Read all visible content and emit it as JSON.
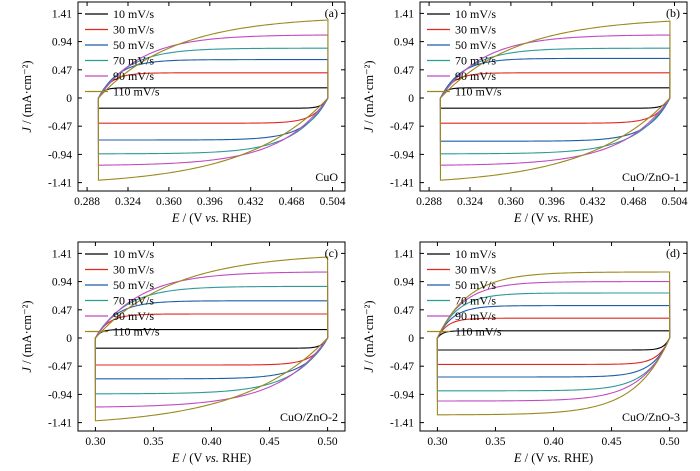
{
  "figure": {
    "legend_entries": [
      "10 mV/s",
      "30 mV/s",
      "50 mV/s",
      "70 mV/s",
      "90 mV/s",
      "110 mV/s"
    ],
    "series_colors": [
      "#000000",
      "#e0271f",
      "#1e5ea8",
      "#2f9a9a",
      "#c24ac2",
      "#9a8a1e"
    ]
  },
  "chart_data": [
    {
      "type": "line",
      "panel_label": "(a)",
      "sample_label": "CuO",
      "xlabel_italic": "E",
      "xlabel_rest": " / (V ",
      "xlabel_vs": "vs.",
      "xlabel_end": " RHE)",
      "ylabel_italic": "J",
      "ylabel_rest": " / (mA·cm⁻²)",
      "xlim": [
        0.28,
        0.515
      ],
      "ylim": [
        -1.55,
        1.6
      ],
      "xticks": [
        "0.288",
        "0.324",
        "0.360",
        "0.396",
        "0.432",
        "0.468",
        "0.504"
      ],
      "yticks": [
        "1.41",
        "0.94",
        "0.47",
        "0",
        "-0.47",
        "-0.94",
        "-1.41"
      ],
      "grid": false,
      "legend_position": "top-left",
      "x_range": [
        0.298,
        0.5
      ],
      "series": [
        {
          "name": "10 mV/s",
          "anodic_plateau": 0.17,
          "cathodic_plateau": -0.17,
          "sharpness": 0.02
        },
        {
          "name": "30 mV/s",
          "anodic_plateau": 0.42,
          "cathodic_plateau": -0.42,
          "sharpness": 0.05
        },
        {
          "name": "50 mV/s",
          "anodic_plateau": 0.64,
          "cathodic_plateau": -0.7,
          "sharpness": 0.08
        },
        {
          "name": "70 mV/s",
          "anodic_plateau": 0.83,
          "cathodic_plateau": -0.93,
          "sharpness": 0.12
        },
        {
          "name": "90 mV/s",
          "anodic_plateau": 1.05,
          "cathodic_plateau": -1.12,
          "sharpness": 0.17
        },
        {
          "name": "110 mV/s",
          "anodic_plateau": 1.3,
          "cathodic_plateau": -1.37,
          "sharpness": 0.3
        }
      ]
    },
    {
      "type": "line",
      "panel_label": "(b)",
      "sample_label": "CuO/ZnO-1",
      "xlabel_italic": "E",
      "xlabel_rest": " / (V ",
      "xlabel_vs": "vs.",
      "xlabel_end": " RHE)",
      "ylabel_italic": "J",
      "ylabel_rest": " / (mA·cm⁻²)",
      "xlim": [
        0.28,
        0.515
      ],
      "ylim": [
        -1.55,
        1.6
      ],
      "xticks": [
        "0.288",
        "0.324",
        "0.360",
        "0.396",
        "0.432",
        "0.468",
        "0.504"
      ],
      "yticks": [
        "1.41",
        "0.94",
        "0.47",
        "0",
        "-0.47",
        "-0.94",
        "-1.41"
      ],
      "grid": false,
      "legend_position": "top-left",
      "x_range": [
        0.298,
        0.5
      ],
      "series": [
        {
          "name": "10 mV/s",
          "anodic_plateau": 0.17,
          "cathodic_plateau": -0.17,
          "sharpness": 0.02
        },
        {
          "name": "30 mV/s",
          "anodic_plateau": 0.42,
          "cathodic_plateau": -0.42,
          "sharpness": 0.05
        },
        {
          "name": "50 mV/s",
          "anodic_plateau": 0.66,
          "cathodic_plateau": -0.72,
          "sharpness": 0.08
        },
        {
          "name": "70 mV/s",
          "anodic_plateau": 0.83,
          "cathodic_plateau": -0.93,
          "sharpness": 0.12
        },
        {
          "name": "90 mV/s",
          "anodic_plateau": 1.05,
          "cathodic_plateau": -1.12,
          "sharpness": 0.17
        },
        {
          "name": "110 mV/s",
          "anodic_plateau": 1.28,
          "cathodic_plateau": -1.37,
          "sharpness": 0.3
        }
      ]
    },
    {
      "type": "line",
      "panel_label": "(c)",
      "sample_label": "CuO/ZnO-2",
      "xlabel_italic": "E",
      "xlabel_rest": " / (V ",
      "xlabel_vs": "vs.",
      "xlabel_end": " RHE)",
      "ylabel_italic": "J",
      "ylabel_rest": " / (mA·cm⁻²)",
      "xlim": [
        0.285,
        0.515
      ],
      "ylim": [
        -1.55,
        1.6
      ],
      "xticks": [
        "0.30",
        "0.35",
        "0.40",
        "0.45",
        "0.50"
      ],
      "yticks": [
        "1.41",
        "0.94",
        "0.47",
        "0",
        "-0.47",
        "-0.94",
        "-1.41"
      ],
      "grid": false,
      "legend_position": "top-left",
      "x_range": [
        0.3,
        0.5
      ],
      "series": [
        {
          "name": "10 mV/s",
          "anodic_plateau": 0.14,
          "cathodic_plateau": -0.17,
          "sharpness": 0.02
        },
        {
          "name": "30 mV/s",
          "anodic_plateau": 0.4,
          "cathodic_plateau": -0.45,
          "sharpness": 0.05
        },
        {
          "name": "50 mV/s",
          "anodic_plateau": 0.62,
          "cathodic_plateau": -0.68,
          "sharpness": 0.08
        },
        {
          "name": "70 mV/s",
          "anodic_plateau": 0.86,
          "cathodic_plateau": -0.93,
          "sharpness": 0.12
        },
        {
          "name": "90 mV/s",
          "anodic_plateau": 1.1,
          "cathodic_plateau": -1.15,
          "sharpness": 0.17
        },
        {
          "name": "110 mV/s",
          "anodic_plateau": 1.35,
          "cathodic_plateau": -1.38,
          "sharpness": 0.3
        }
      ]
    },
    {
      "type": "line",
      "panel_label": "(d)",
      "sample_label": "CuO/ZnO-3",
      "xlabel_italic": "E",
      "xlabel_rest": " / (V ",
      "xlabel_vs": "vs.",
      "xlabel_end": " RHE)",
      "ylabel_italic": "J",
      "ylabel_rest": " / (mA·cm⁻²)",
      "xlim": [
        0.285,
        0.515
      ],
      "ylim": [
        -1.55,
        1.6
      ],
      "xticks": [
        "0.30",
        "0.35",
        "0.40",
        "0.45",
        "0.50"
      ],
      "yticks": [
        "1.41",
        "0.94",
        "0.47",
        "0",
        "-0.47",
        "-0.94",
        "-1.41"
      ],
      "grid": false,
      "legend_position": "top-left",
      "x_range": [
        0.3,
        0.5
      ],
      "series": [
        {
          "name": "10 mV/s",
          "anodic_plateau": 0.12,
          "cathodic_plateau": -0.2,
          "sharpness": 0.02
        },
        {
          "name": "30 mV/s",
          "anodic_plateau": 0.33,
          "cathodic_plateau": -0.44,
          "sharpness": 0.04
        },
        {
          "name": "50 mV/s",
          "anodic_plateau": 0.54,
          "cathodic_plateau": -0.65,
          "sharpness": 0.06
        },
        {
          "name": "70 mV/s",
          "anodic_plateau": 0.75,
          "cathodic_plateau": -0.88,
          "sharpness": 0.08
        },
        {
          "name": "90 mV/s",
          "anodic_plateau": 0.94,
          "cathodic_plateau": -1.05,
          "sharpness": 0.1
        },
        {
          "name": "110 mV/s",
          "anodic_plateau": 1.1,
          "cathodic_plateau": -1.28,
          "sharpness": 0.12
        }
      ]
    }
  ]
}
